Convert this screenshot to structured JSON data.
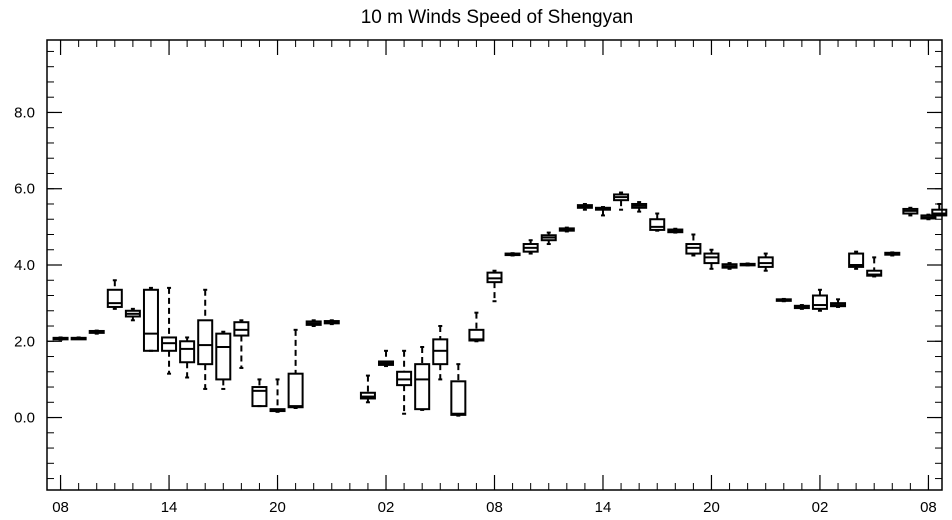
{
  "chart_data": {
    "type": "box",
    "title": "10 m Winds Speed of Shengyan",
    "xlabel": "",
    "ylabel": "",
    "ylim": [
      -1.9,
      9.9
    ],
    "y_ticks": [
      0,
      2,
      4,
      6,
      8
    ],
    "y_tick_labels": [
      "0.0",
      "2.0",
      "4.0",
      "6.0",
      "8.0"
    ],
    "y_minor_step": 0.4,
    "x_range": [
      -0.75,
      48.75
    ],
    "x_ticks": [
      0,
      6,
      12,
      18,
      24,
      30,
      36,
      42,
      48
    ],
    "x_tick_labels": [
      "08",
      "14",
      "20",
      "02",
      "08",
      "14",
      "20",
      "02",
      "08"
    ],
    "x_minor_step": 1,
    "grid": false,
    "legend": "none",
    "boxes": [
      {
        "x": 0,
        "min": 2.04,
        "q1": 2.05,
        "median": 2.07,
        "q3": 2.09,
        "max": 2.1
      },
      {
        "x": 1,
        "min": 2.06,
        "q1": 2.07,
        "median": 2.08,
        "q3": 2.09,
        "max": 2.1
      },
      {
        "x": 2,
        "min": 2.2,
        "q1": 2.22,
        "median": 2.25,
        "q3": 2.27,
        "max": 2.28
      },
      {
        "x": 3,
        "min": 2.85,
        "q1": 2.9,
        "median": 3.0,
        "q3": 3.35,
        "max": 3.6
      },
      {
        "x": 4,
        "min": 2.55,
        "q1": 2.65,
        "median": 2.72,
        "q3": 2.8,
        "max": 2.85
      },
      {
        "x": 5,
        "min": 1.75,
        "q1": 1.75,
        "median": 2.2,
        "q3": 3.35,
        "max": 3.4
      },
      {
        "x": 6,
        "min": 1.15,
        "q1": 1.75,
        "median": 1.95,
        "q3": 2.1,
        "max": 3.4
      },
      {
        "x": 7,
        "min": 1.05,
        "q1": 1.45,
        "median": 1.8,
        "q3": 2.0,
        "max": 2.1
      },
      {
        "x": 8,
        "min": 0.75,
        "q1": 1.4,
        "median": 1.9,
        "q3": 2.55,
        "max": 3.35
      },
      {
        "x": 9,
        "min": 0.75,
        "q1": 1.0,
        "median": 1.85,
        "q3": 2.2,
        "max": 2.25
      },
      {
        "x": 10,
        "min": 1.3,
        "q1": 2.15,
        "median": 2.3,
        "q3": 2.5,
        "max": 2.55
      },
      {
        "x": 11,
        "min": 0.3,
        "q1": 0.3,
        "median": 0.7,
        "q3": 0.8,
        "max": 1.0
      },
      {
        "x": 12,
        "min": 0.15,
        "q1": 0.17,
        "median": 0.2,
        "q3": 0.22,
        "max": 1.0
      },
      {
        "x": 13,
        "min": 0.25,
        "q1": 0.27,
        "median": 0.3,
        "q3": 1.15,
        "max": 2.3
      },
      {
        "x": 14,
        "min": 2.4,
        "q1": 2.43,
        "median": 2.47,
        "q3": 2.52,
        "max": 2.55
      },
      {
        "x": 15,
        "min": 2.45,
        "q1": 2.47,
        "median": 2.5,
        "q3": 2.53,
        "max": 2.55
      },
      {
        "x": 17,
        "min": 0.4,
        "q1": 0.5,
        "median": 0.55,
        "q3": 0.65,
        "max": 1.1
      },
      {
        "x": 18,
        "min": 1.35,
        "q1": 1.38,
        "median": 1.42,
        "q3": 1.47,
        "max": 1.75
      },
      {
        "x": 19,
        "min": 0.1,
        "q1": 0.85,
        "median": 1.0,
        "q3": 1.2,
        "max": 1.75
      },
      {
        "x": 20,
        "min": 0.2,
        "q1": 0.22,
        "median": 1.0,
        "q3": 1.4,
        "max": 1.85
      },
      {
        "x": 21,
        "min": 1.0,
        "q1": 1.4,
        "median": 1.75,
        "q3": 2.05,
        "max": 2.4
      },
      {
        "x": 22,
        "min": 0.05,
        "q1": 0.07,
        "median": 0.1,
        "q3": 0.95,
        "max": 1.4
      },
      {
        "x": 23,
        "min": 2.0,
        "q1": 2.02,
        "median": 2.05,
        "q3": 2.3,
        "max": 2.75
      },
      {
        "x": 24,
        "min": 3.05,
        "q1": 3.55,
        "median": 3.65,
        "q3": 3.8,
        "max": 3.85
      },
      {
        "x": 25,
        "min": 4.25,
        "q1": 4.26,
        "median": 4.28,
        "q3": 4.3,
        "max": 4.31
      },
      {
        "x": 26,
        "min": 4.3,
        "q1": 4.35,
        "median": 4.45,
        "q3": 4.55,
        "max": 4.65
      },
      {
        "x": 27,
        "min": 4.55,
        "q1": 4.65,
        "median": 4.72,
        "q3": 4.78,
        "max": 4.85
      },
      {
        "x": 28,
        "min": 4.88,
        "q1": 4.9,
        "median": 4.92,
        "q3": 4.96,
        "max": 4.98
      },
      {
        "x": 29,
        "min": 5.45,
        "q1": 5.5,
        "median": 5.54,
        "q3": 5.57,
        "max": 5.6
      },
      {
        "x": 30,
        "min": 5.3,
        "q1": 5.45,
        "median": 5.48,
        "q3": 5.5,
        "max": 5.52
      },
      {
        "x": 31,
        "min": 5.45,
        "q1": 5.7,
        "median": 5.78,
        "q3": 5.85,
        "max": 5.9
      },
      {
        "x": 32,
        "min": 5.4,
        "q1": 5.5,
        "median": 5.55,
        "q3": 5.6,
        "max": 5.65
      },
      {
        "x": 33,
        "min": 4.9,
        "q1": 4.92,
        "median": 5.0,
        "q3": 5.2,
        "max": 5.35
      },
      {
        "x": 34,
        "min": 4.85,
        "q1": 4.86,
        "median": 4.9,
        "q3": 4.93,
        "max": 4.95
      },
      {
        "x": 35,
        "min": 4.25,
        "q1": 4.3,
        "median": 4.45,
        "q3": 4.55,
        "max": 4.8
      },
      {
        "x": 36,
        "min": 3.9,
        "q1": 4.05,
        "median": 4.2,
        "q3": 4.3,
        "max": 4.4
      },
      {
        "x": 37,
        "min": 3.9,
        "q1": 3.93,
        "median": 3.97,
        "q3": 4.02,
        "max": 4.05
      },
      {
        "x": 38,
        "min": 3.99,
        "q1": 4.0,
        "median": 4.02,
        "q3": 4.03,
        "max": 4.04
      },
      {
        "x": 39,
        "min": 3.85,
        "q1": 3.95,
        "median": 4.05,
        "q3": 4.2,
        "max": 4.3
      },
      {
        "x": 40,
        "min": 3.05,
        "q1": 3.06,
        "median": 3.08,
        "q3": 3.1,
        "max": 3.11
      },
      {
        "x": 41,
        "min": 2.85,
        "q1": 2.87,
        "median": 2.9,
        "q3": 2.93,
        "max": 2.95
      },
      {
        "x": 42,
        "min": 2.8,
        "q1": 2.85,
        "median": 2.95,
        "q3": 3.2,
        "max": 3.35
      },
      {
        "x": 43,
        "min": 2.9,
        "q1": 2.92,
        "median": 2.95,
        "q3": 3.0,
        "max": 3.1
      },
      {
        "x": 44,
        "min": 3.9,
        "q1": 3.95,
        "median": 4.0,
        "q3": 4.3,
        "max": 4.35
      },
      {
        "x": 45,
        "min": 3.7,
        "q1": 3.72,
        "median": 3.75,
        "q3": 3.85,
        "max": 4.2
      },
      {
        "x": 46,
        "min": 4.25,
        "q1": 4.27,
        "median": 4.3,
        "q3": 4.32,
        "max": 4.33
      },
      {
        "x": 47,
        "min": 5.3,
        "q1": 5.35,
        "median": 5.42,
        "q3": 5.47,
        "max": 5.5
      },
      {
        "x": 48,
        "min": 5.2,
        "q1": 5.22,
        "median": 5.25,
        "q3": 5.3,
        "max": 5.32
      }
    ],
    "extra_box": {
      "x": 48.6,
      "min": 5.3,
      "q1": 5.3,
      "median": 5.35,
      "q3": 5.45,
      "max": 5.6
    }
  }
}
